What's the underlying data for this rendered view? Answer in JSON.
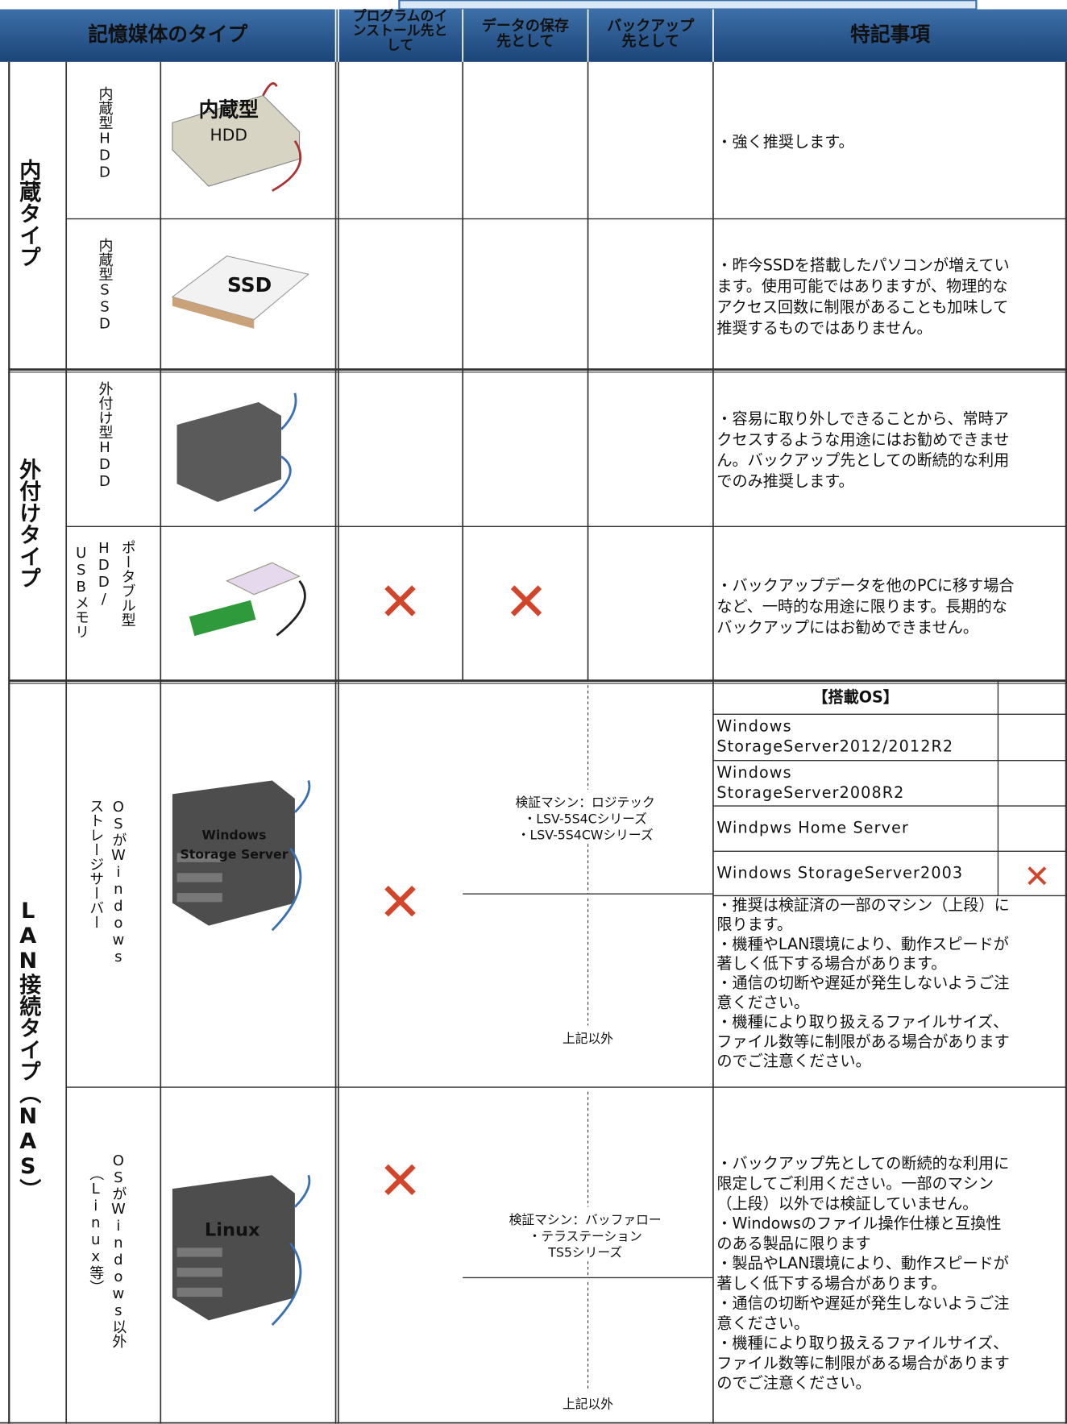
{
  "header": {
    "type_col": "記憶媒体のタイプ",
    "install": [
      "プログラムのイ",
      "ンストール先と",
      "して"
    ],
    "data": [
      "データの保存",
      "先として"
    ],
    "backup": [
      "バックアップ",
      "先として"
    ],
    "notes": "特記事項"
  },
  "groups": [
    "内蔵タイプ",
    "外付けタイプ",
    "LAN接続タイプ（NAS）"
  ],
  "rows": [
    {
      "media": [
        "内蔵型HDD"
      ],
      "image_text": [
        "内蔵型",
        "HDD"
      ],
      "notes": [
        "・強く推奨します。"
      ]
    },
    {
      "media": [
        "内蔵型SSD"
      ],
      "image_text": [
        "SSD"
      ],
      "notes": [
        "・昨今SSDを搭載したパソコンが増えてい",
        "ます。使用可能ではありますが、物理的な",
        "アクセス回数に制限があることも加味して",
        "推奨するものではありません。"
      ]
    },
    {
      "media": [
        "外付け型HDD"
      ],
      "image_text": [],
      "notes": [
        "・容易に取り外しできることから、常時ア",
        "クセスするような用途にはお勧めできませ",
        "ん。バックアップ先としての断続的な利用",
        "でのみ推奨します。"
      ]
    },
    {
      "media": [
        "ポータブル型",
        "HDD/",
        "USBメモリ"
      ],
      "image_text": [],
      "notes": [
        "・バックアップデータを他のPCに移す場合",
        "など、一時的な用途に限ります。長期的な",
        "バックアップにはお勧めできません。"
      ]
    },
    {
      "media": [
        "OSがWindows",
        "ストレージサーバー"
      ],
      "image_text": [
        "Windows",
        "Storage Server"
      ],
      "verify": [
        "検証マシン：ロジテック",
        "・LSV-5S4Cシリーズ",
        "・LSV-5S4CWシリーズ"
      ],
      "other": "上記以外",
      "notes": [
        "・推奨は検証済の一部のマシン（上段）に",
        "限ります。",
        "・機種やLAN環境により、動作スピードが",
        "著しく低下する場合があります。",
        "・通信の切断や遅延が発生しないようご注",
        "意ください。",
        "・機種により取り扱えるファイルサイズ、",
        "ファイル数等に制限がある場合があります",
        "のでご注意ください。"
      ]
    },
    {
      "media": [
        "OSがWindows以外",
        "（Linux等）"
      ],
      "image_text": [
        "Linux"
      ],
      "verify": [
        "検証マシン：バッファロー",
        "・テラステーション",
        "TS5シリーズ"
      ],
      "other": "上記以外",
      "notes": [
        "・バックアップ先としての断続的な利用に",
        "限定してご利用ください。一部のマシン",
        "（上段）以外では検証していません。",
        "・Windowsのファイル操作仕様と互換性",
        "のある製品に限ります",
        "・製品やLAN環境により、動作スピードが",
        "著しく低下する場合があります。",
        "・通信の切断や遅延が発生しないようご注",
        "意ください。",
        "・機種により取り扱えるファイルサイズ、",
        "ファイル数等に制限がある場合があります",
        "のでご注意ください。"
      ]
    }
  ],
  "os_table": {
    "header": "【搭載OS】",
    "rows": [
      [
        "Windows",
        "StorageServer2012/2012R2"
      ],
      [
        "Windows",
        "StorageServer2008R2"
      ],
      [
        "Windpws Home Server"
      ],
      [
        "Windows StorageServer2003"
      ]
    ]
  }
}
